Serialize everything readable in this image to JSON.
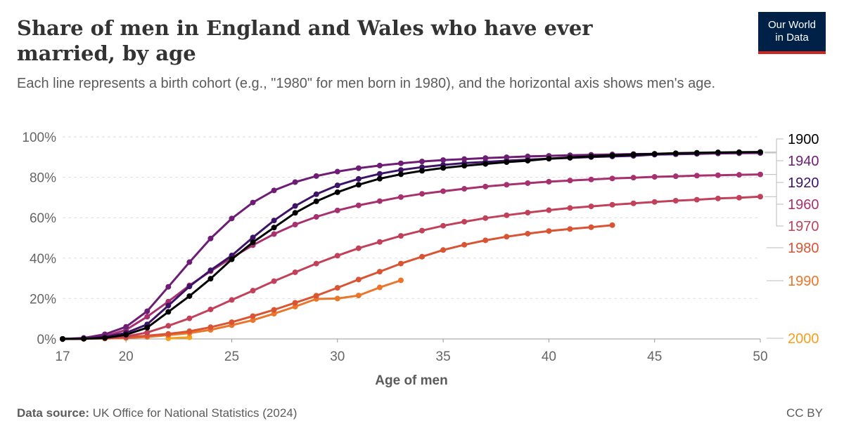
{
  "header": {
    "title": "Share of men in England and Wales who have ever married, by age",
    "subtitle": "Each line represents a birth cohort (e.g., \"1980\" for men born in 1980), and the horizontal axis shows men's age.",
    "logo_line1": "Our World",
    "logo_line2": "in Data"
  },
  "footer": {
    "source_label": "Data source:",
    "source_text": "UK Office for National Statistics (2024)",
    "license": "CC BY"
  },
  "chart_data": {
    "type": "line",
    "xlabel": "Age of men",
    "ylabel": "",
    "xlim": [
      17,
      50
    ],
    "ylim": [
      0,
      100
    ],
    "x_ticks": [
      17,
      20,
      25,
      30,
      35,
      40,
      45,
      50
    ],
    "y_ticks": [
      0,
      20,
      40,
      60,
      80,
      100
    ],
    "y_tick_labels": [
      "0%",
      "20%",
      "40%",
      "60%",
      "80%",
      "100%"
    ],
    "grid": "horizontal-dashed",
    "legend": "right, labels at line ends",
    "series": [
      {
        "name": "1900",
        "color": "#000000",
        "x": [
          17,
          18,
          19,
          20,
          21,
          22,
          23,
          24,
          25,
          26,
          27,
          28,
          29,
          30,
          31,
          32,
          33,
          34,
          35,
          36,
          37,
          38,
          39,
          40,
          41,
          42,
          43,
          44,
          45,
          46,
          47,
          48,
          49,
          50
        ],
        "y": [
          0,
          0.1,
          0.5,
          2.1,
          5.6,
          13.4,
          21.2,
          29.8,
          39.4,
          47.8,
          55.1,
          62.4,
          68.1,
          72.6,
          76.3,
          79.3,
          81.5,
          83.2,
          84.6,
          85.7,
          86.6,
          87.5,
          88.2,
          89.2,
          89.8,
          90.3,
          90.8,
          91.2,
          91.6,
          91.9,
          92.1,
          92.3,
          92.4,
          92.5
        ]
      },
      {
        "name": "1940",
        "color": "#6d1e74",
        "x": [
          17,
          18,
          19,
          20,
          21,
          22,
          23,
          24,
          25,
          26,
          27,
          28,
          29,
          30,
          31,
          32,
          33,
          34,
          35,
          36,
          37,
          38,
          39,
          40,
          41,
          42,
          43,
          44,
          45,
          46,
          47,
          48,
          49,
          50
        ],
        "y": [
          0,
          0.5,
          2.3,
          6.0,
          13.7,
          25.8,
          38.0,
          49.7,
          59.6,
          67.5,
          73.5,
          77.6,
          80.6,
          82.8,
          84.5,
          85.8,
          86.9,
          87.8,
          88.5,
          89.0,
          89.5,
          89.9,
          90.3,
          90.6,
          90.9,
          91.1,
          91.3,
          91.5,
          91.6,
          91.7,
          91.8,
          91.9,
          92.0,
          92.1
        ]
      },
      {
        "name": "1920",
        "color": "#3d1465",
        "x": [
          17,
          18,
          19,
          20,
          21,
          22,
          23,
          24,
          25,
          26,
          27,
          28,
          29,
          30,
          31,
          32,
          33,
          34,
          35,
          36,
          37,
          38,
          39,
          40,
          41,
          42,
          43,
          44,
          45,
          46,
          47,
          48,
          49,
          50
        ],
        "y": [
          0,
          0.2,
          1.0,
          3.0,
          7.2,
          16.5,
          26.0,
          34.0,
          41.3,
          50.2,
          58.6,
          65.8,
          71.6,
          76.0,
          79.2,
          81.7,
          83.6,
          85.0,
          86.1,
          87.0,
          87.6,
          88.2,
          88.7,
          89.2,
          89.6,
          90.0,
          90.3,
          90.6,
          91.2,
          91.4,
          91.6,
          91.8,
          91.9,
          92.0
        ]
      },
      {
        "name": "1960",
        "color": "#a7306e",
        "x": [
          17,
          18,
          19,
          20,
          21,
          22,
          23,
          24,
          25,
          26,
          27,
          28,
          29,
          30,
          31,
          32,
          33,
          34,
          35,
          36,
          37,
          38,
          39,
          40,
          41,
          42,
          43,
          44,
          45,
          46,
          47,
          48,
          49,
          50
        ],
        "y": [
          0,
          0.3,
          1.3,
          4.5,
          11.0,
          18.5,
          26.5,
          33.5,
          40.2,
          46.4,
          51.9,
          56.6,
          60.4,
          63.6,
          66.1,
          68.2,
          70.2,
          71.8,
          73.1,
          74.3,
          75.4,
          76.3,
          77.1,
          77.8,
          78.4,
          78.9,
          79.4,
          79.8,
          80.2,
          80.5,
          80.8,
          81.0,
          81.2,
          81.4
        ]
      },
      {
        "name": "1970",
        "color": "#c2415a",
        "x": [
          17,
          18,
          19,
          20,
          21,
          22,
          23,
          24,
          25,
          26,
          27,
          28,
          29,
          30,
          31,
          32,
          33,
          34,
          35,
          36,
          37,
          38,
          39,
          40,
          41,
          42,
          43,
          44,
          45,
          46,
          47,
          48,
          49,
          50
        ],
        "y": [
          0,
          0.1,
          0.4,
          1.2,
          3.2,
          6.5,
          10.2,
          14.6,
          19.3,
          23.9,
          28.6,
          33.0,
          37.3,
          41.2,
          44.9,
          48.0,
          51.0,
          53.6,
          56.0,
          58.0,
          59.8,
          61.2,
          62.5,
          63.7,
          64.8,
          65.6,
          66.4,
          67.1,
          67.8,
          68.4,
          68.9,
          69.5,
          69.9,
          70.4
        ]
      },
      {
        "name": "1980",
        "color": "#d95433",
        "x": [
          17,
          18,
          19,
          20,
          21,
          22,
          23,
          24,
          25,
          26,
          27,
          28,
          29,
          30,
          31,
          32,
          33,
          34,
          35,
          36,
          37,
          38,
          39,
          40,
          41,
          42,
          43
        ],
        "y": [
          0,
          0.1,
          0.3,
          0.8,
          1.6,
          2.5,
          3.8,
          5.8,
          8.3,
          11.3,
          14.4,
          17.9,
          21.4,
          25.3,
          29.4,
          33.3,
          37.3,
          40.7,
          44.0,
          46.6,
          48.8,
          50.6,
          52.1,
          53.4,
          54.4,
          55.3,
          56.3
        ]
      },
      {
        "name": "1990",
        "color": "#e9762b",
        "x": [
          17,
          18,
          19,
          20,
          21,
          22,
          23,
          24,
          25,
          26,
          27,
          28,
          29,
          30,
          31,
          32,
          33
        ],
        "y": [
          0,
          0.1,
          0.2,
          0.5,
          1.0,
          1.9,
          2.9,
          4.5,
          6.8,
          9.3,
          12.5,
          16.0,
          19.8,
          20.0,
          21.5,
          25.5,
          29.0
        ]
      },
      {
        "name": "2000",
        "color": "#f5a01c",
        "x": [
          22,
          23
        ],
        "y": [
          0.3,
          0.8
        ]
      }
    ]
  }
}
